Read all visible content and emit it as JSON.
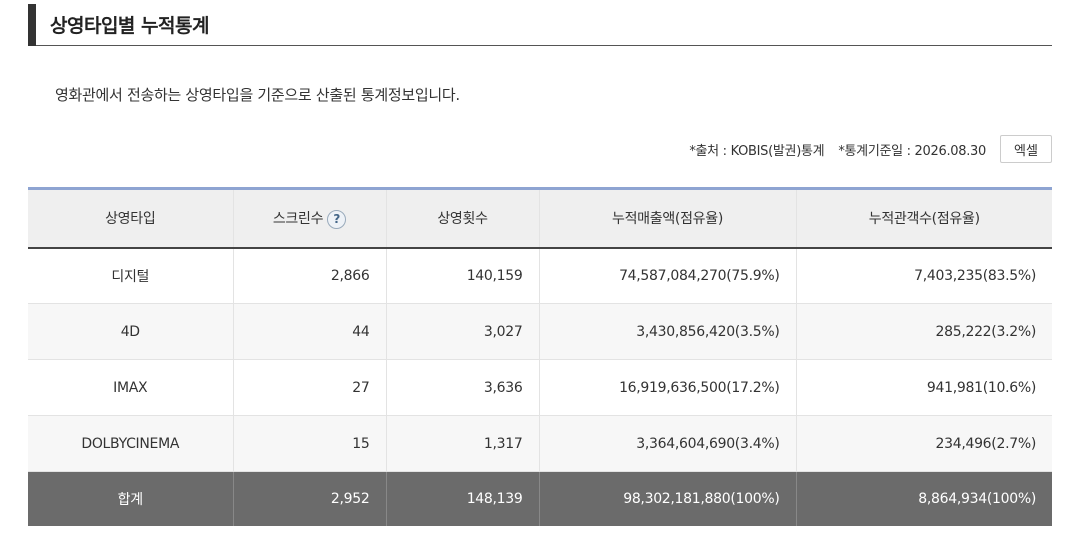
{
  "section": {
    "title": "상영타입별 누적통계"
  },
  "description": "영화관에서 전송하는 상영타입을 기준으로 산출된 통계정보입니다.",
  "meta": {
    "source": "*출처 : KOBIS(발권)통계",
    "base_date": "*통계기준일 : 2026.08.30",
    "excel_label": "엑셀"
  },
  "table": {
    "headers": {
      "type": "상영타입",
      "screens": "스크린수",
      "screens_help": "?",
      "shows": "상영횟수",
      "sales": "누적매출액(점유율)",
      "audience": "누적관객수(점유율)"
    },
    "rows": [
      {
        "type": "디지털",
        "screens": "2,866",
        "shows": "140,159",
        "sales": "74,587,084,270(75.9%)",
        "audience": "7,403,235(83.5%)"
      },
      {
        "type": "4D",
        "screens": "44",
        "shows": "3,027",
        "sales": "3,430,856,420(3.5%)",
        "audience": "285,222(3.2%)"
      },
      {
        "type": "IMAX",
        "screens": "27",
        "shows": "3,636",
        "sales": "16,919,636,500(17.2%)",
        "audience": "941,981(10.6%)"
      },
      {
        "type": "DOLBYCINEMA",
        "screens": "15",
        "shows": "1,317",
        "sales": "3,364,604,690(3.4%)",
        "audience": "234,496(2.7%)"
      }
    ],
    "total": {
      "type": "합계",
      "screens": "2,952",
      "shows": "148,139",
      "sales": "98,302,181,880(100%)",
      "audience": "8,864,934(100%)"
    }
  },
  "colors": {
    "header_accent": "#8ea4d2",
    "total_row_bg": "#6b6b6b",
    "header_bg": "#efefef"
  }
}
